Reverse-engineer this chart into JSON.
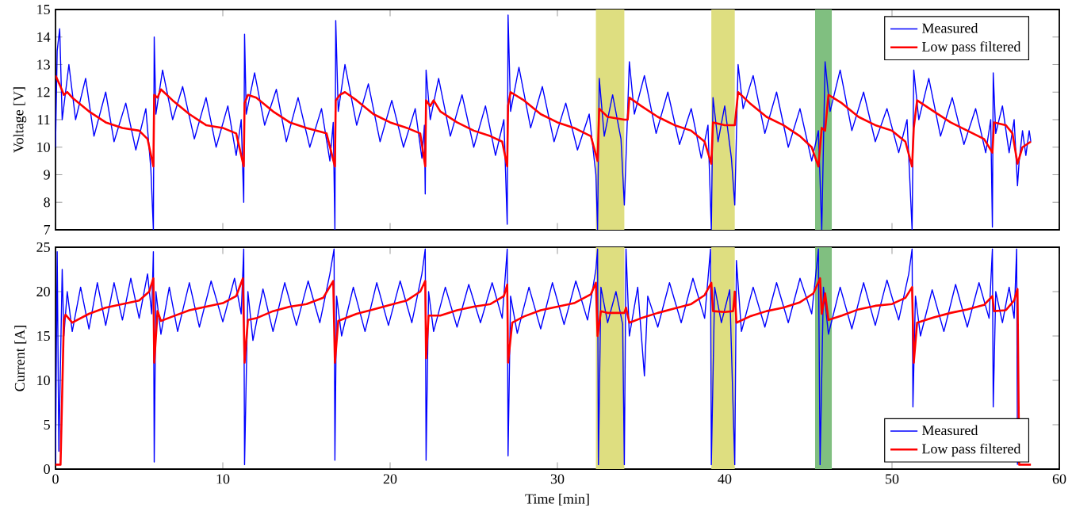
{
  "chart_data": [
    {
      "type": "line",
      "ylabel": "Voltage [V]",
      "xlim": [
        0,
        60
      ],
      "ylim": [
        7,
        15
      ],
      "xticks": [
        0,
        10,
        20,
        30,
        40,
        50,
        60
      ],
      "yticks": [
        7,
        8,
        9,
        10,
        11,
        12,
        13,
        14,
        15
      ],
      "tick_labels": "y",
      "legend": "top right",
      "bands": [
        {
          "axis": "x",
          "from": 32.3,
          "to": 34.0,
          "color": "#dede80"
        },
        {
          "axis": "x",
          "from": 39.2,
          "to": 40.6,
          "color": "#dede80"
        },
        {
          "axis": "x",
          "from": 45.4,
          "to": 46.4,
          "color": "#80bf80"
        }
      ],
      "series": [
        {
          "name": "Measured",
          "color": "#0000ff",
          "x": [
            0,
            0.1,
            0.25,
            0.4,
            0.8,
            1.2,
            1.8,
            2.3,
            3,
            3.5,
            4.2,
            4.8,
            5.4,
            5.7,
            5.85,
            5.9,
            6.0,
            6.4,
            7.0,
            7.6,
            8.3,
            9.0,
            9.6,
            10.3,
            10.8,
            11.1,
            11.25,
            11.3,
            11.4,
            11.9,
            12.5,
            13.2,
            13.8,
            14.5,
            15.2,
            15.9,
            16.4,
            16.6,
            16.7,
            16.75,
            16.9,
            17.3,
            18.0,
            18.7,
            19.4,
            20.1,
            20.8,
            21.5,
            21.9,
            22.05,
            22.1,
            22.15,
            22.4,
            22.9,
            23.6,
            24.3,
            25.0,
            25.7,
            26.3,
            26.8,
            27.0,
            27.05,
            27.2,
            27.7,
            28.4,
            29.1,
            29.8,
            30.5,
            31.2,
            31.9,
            32.3,
            32.4,
            32.5,
            32.8,
            33.3,
            33.8,
            34.0,
            34.3,
            34.6,
            35.2,
            35.9,
            36.6,
            37.3,
            38.0,
            38.6,
            39.0,
            39.2,
            39.3,
            39.6,
            40.0,
            40.4,
            40.6,
            40.8,
            41.1,
            41.7,
            42.4,
            43.1,
            43.8,
            44.5,
            45.2,
            45.6,
            45.8,
            46.0,
            46.3,
            46.9,
            47.6,
            48.3,
            49.0,
            49.7,
            50.4,
            50.9,
            51.2,
            51.3,
            51.6,
            52.2,
            52.9,
            53.6,
            54.3,
            55.0,
            55.6,
            55.9,
            56.0,
            56.05,
            56.2,
            56.6,
            57.0,
            57.3,
            57.5,
            57.6,
            57.8,
            58.0,
            58.2,
            58.3
          ],
          "values": [
            10.0,
            13.5,
            14.3,
            11.0,
            13.0,
            11.0,
            12.5,
            10.4,
            12.0,
            10.2,
            11.6,
            9.9,
            11.4,
            9.2,
            7.0,
            14.0,
            11.2,
            12.8,
            11.0,
            12.2,
            10.3,
            11.8,
            10.0,
            11.5,
            9.7,
            11.0,
            8.0,
            14.1,
            11.2,
            12.7,
            10.8,
            12.1,
            10.2,
            11.8,
            10.0,
            11.4,
            9.5,
            10.9,
            7.0,
            14.6,
            11.3,
            13.0,
            10.8,
            12.3,
            10.2,
            11.7,
            10.0,
            11.4,
            9.6,
            10.8,
            8.3,
            12.8,
            11.0,
            12.5,
            10.4,
            11.9,
            10.0,
            11.5,
            9.7,
            11.0,
            7.2,
            14.8,
            11.3,
            12.9,
            10.7,
            12.2,
            10.2,
            11.6,
            9.9,
            11.2,
            9.0,
            7.0,
            12.5,
            10.4,
            11.9,
            10.3,
            7.9,
            13.1,
            11.2,
            12.6,
            10.5,
            12.0,
            10.1,
            11.4,
            9.6,
            10.8,
            7.0,
            11.8,
            10.2,
            11.5,
            9.6,
            7.9,
            13.0,
            11.4,
            12.6,
            10.5,
            12.0,
            10.0,
            11.4,
            9.5,
            10.6,
            7.0,
            13.1,
            11.3,
            12.8,
            10.6,
            12.0,
            10.2,
            11.4,
            9.8,
            11.0,
            7.0,
            12.8,
            11.0,
            12.5,
            10.4,
            11.8,
            10.1,
            11.4,
            9.8,
            11.0,
            7.1,
            12.7,
            10.5,
            11.5,
            9.8,
            11.0,
            8.6,
            9.5,
            10.6,
            9.7,
            10.6,
            10.2
          ]
        },
        {
          "name": "Low pass filtered",
          "color": "#ff0000",
          "x": [
            0,
            0.3,
            0.5,
            0.7,
            1,
            2,
            3,
            4,
            5,
            5.5,
            5.85,
            5.9,
            6.1,
            6.3,
            7,
            8,
            9,
            10,
            10.8,
            11.25,
            11.3,
            11.5,
            12,
            13,
            14,
            15,
            16.2,
            16.7,
            16.75,
            17,
            17.3,
            18,
            19,
            20,
            21,
            21.8,
            22.1,
            22.15,
            22.4,
            22.6,
            23,
            24,
            25,
            26,
            26.7,
            27.0,
            27.05,
            27.2,
            28,
            29,
            30,
            31,
            32,
            32.4,
            32.5,
            33,
            34,
            34.2,
            34.3,
            35,
            36,
            37,
            38,
            38.8,
            39.2,
            39.3,
            40,
            40.6,
            40.8,
            41.5,
            42.5,
            43.5,
            44.5,
            45.2,
            45.6,
            45.8,
            46.0,
            46.2,
            47,
            48,
            49,
            50,
            50.8,
            51.2,
            51.3,
            51.5,
            52.5,
            53.5,
            54.5,
            55.5,
            56.0,
            56.1,
            56.8,
            57.2,
            57.5,
            57.8,
            58.3
          ],
          "values": [
            12.6,
            12.2,
            11.9,
            12.0,
            11.8,
            11.3,
            10.9,
            10.7,
            10.6,
            10.3,
            9.3,
            11.9,
            11.8,
            12.1,
            11.7,
            11.2,
            10.8,
            10.7,
            10.5,
            9.3,
            11.6,
            11.9,
            11.8,
            11.3,
            10.9,
            10.7,
            10.5,
            9.3,
            11.7,
            11.9,
            12.0,
            11.7,
            11.2,
            10.9,
            10.7,
            10.5,
            9.3,
            11.7,
            11.5,
            11.7,
            11.3,
            10.9,
            10.6,
            10.4,
            10.2,
            9.3,
            11.5,
            12.0,
            11.7,
            11.2,
            10.9,
            10.7,
            10.4,
            9.5,
            11.4,
            11.1,
            11.0,
            11.0,
            11.8,
            11.5,
            11.1,
            10.8,
            10.6,
            10.2,
            9.4,
            10.9,
            10.8,
            10.8,
            12.0,
            11.6,
            11.1,
            10.8,
            10.4,
            10.0,
            9.3,
            10.7,
            10.6,
            11.9,
            11.6,
            11.1,
            10.8,
            10.6,
            10.2,
            9.3,
            10.7,
            11.7,
            11.3,
            10.9,
            10.6,
            10.3,
            9.8,
            10.9,
            10.8,
            10.5,
            9.4,
            10.0,
            10.2
          ]
        }
      ]
    },
    {
      "type": "line",
      "xlabel": "Time [min]",
      "ylabel": "Current [A]",
      "xlim": [
        0,
        60
      ],
      "ylim": [
        0,
        25
      ],
      "xticks": [
        0,
        10,
        20,
        30,
        40,
        50,
        60
      ],
      "yticks": [
        0,
        5,
        10,
        15,
        20,
        25
      ],
      "legend": "bottom right",
      "bands": [
        {
          "axis": "x",
          "from": 32.3,
          "to": 34.0,
          "color": "#dede80"
        },
        {
          "axis": "x",
          "from": 39.2,
          "to": 40.6,
          "color": "#dede80"
        },
        {
          "axis": "x",
          "from": 45.4,
          "to": 46.4,
          "color": "#80bf80"
        }
      ],
      "series": [
        {
          "name": "Measured",
          "color": "#0000ff",
          "x": [
            0,
            0.1,
            0.2,
            0.4,
            0.5,
            0.7,
            1,
            1.5,
            2,
            2.5,
            3,
            3.5,
            4,
            4.5,
            5,
            5.5,
            5.75,
            5.85,
            5.9,
            6.0,
            6.3,
            6.8,
            7.3,
            8,
            8.6,
            9.3,
            10,
            10.7,
            11.1,
            11.25,
            11.3,
            11.5,
            11.8,
            12.4,
            13,
            13.7,
            14.4,
            15.1,
            15.8,
            16.4,
            16.65,
            16.7,
            16.8,
            17.1,
            17.8,
            18.5,
            19.2,
            19.9,
            20.6,
            21.3,
            21.9,
            22.1,
            22.15,
            22.3,
            22.6,
            23.3,
            24,
            24.7,
            25.4,
            26.1,
            26.7,
            27,
            27.05,
            27.2,
            27.6,
            28.3,
            29,
            29.7,
            30.4,
            31.1,
            31.8,
            32.3,
            32.4,
            32.45,
            32.6,
            33,
            33.5,
            33.9,
            34.0,
            34.1,
            34.3,
            34.8,
            35.2,
            35.4,
            36,
            36.7,
            37.4,
            38.1,
            38.8,
            39.15,
            39.2,
            39.4,
            39.8,
            40.3,
            40.6,
            40.7,
            41,
            41.7,
            42.4,
            43.1,
            43.8,
            44.5,
            45.2,
            45.6,
            45.7,
            45.9,
            46.2,
            46.9,
            47.6,
            48.3,
            49,
            49.7,
            50.4,
            51,
            51.2,
            51.25,
            51.4,
            51.7,
            52.4,
            53.1,
            53.8,
            54.5,
            55.2,
            55.8,
            56.0,
            56.05,
            56.2,
            56.6,
            57.0,
            57.3,
            57.45,
            57.5
          ],
          "values": [
            0.5,
            24.5,
            2,
            22.5,
            15,
            20,
            15.5,
            20.5,
            15.8,
            21,
            16.2,
            21,
            16.8,
            21.5,
            17,
            22,
            17.5,
            24.5,
            0.8,
            20,
            15.2,
            20.5,
            15.5,
            21,
            16,
            21.2,
            16.6,
            21.5,
            17.5,
            24.8,
            0.5,
            20,
            14.5,
            20.3,
            15.5,
            21,
            16.2,
            21.2,
            16.5,
            22,
            24.8,
            1.0,
            19.5,
            15,
            20.5,
            15.5,
            21,
            16.2,
            21.2,
            16.5,
            22,
            24.8,
            1.0,
            20,
            15.5,
            20.5,
            16,
            20.8,
            16.5,
            21,
            17,
            24.8,
            1.5,
            19.5,
            15.3,
            20.5,
            15.8,
            21,
            16.3,
            21.2,
            16.8,
            22.5,
            24.8,
            0.5,
            20.5,
            16.5,
            20,
            16.3,
            0.5,
            24.8,
            15,
            20.5,
            10.5,
            19.5,
            16,
            21,
            16.5,
            21.5,
            17,
            24.8,
            0.5,
            20.5,
            16.5,
            20.2,
            0.5,
            23.5,
            15.5,
            20.5,
            16,
            21,
            16.5,
            21.5,
            17.5,
            24.8,
            0.5,
            20.5,
            15.2,
            20.5,
            15.8,
            21,
            16.2,
            21.3,
            16.8,
            22,
            24.8,
            7,
            19.5,
            15,
            20.2,
            15.5,
            20.8,
            16,
            21,
            17,
            24.8,
            7,
            20,
            16.5,
            20.5,
            17,
            24.8,
            0.5
          ]
        },
        {
          "name": "Low pass filtered",
          "color": "#ff0000",
          "x": [
            0,
            0.3,
            0.5,
            0.6,
            1,
            2,
            3,
            4,
            5,
            5.6,
            5.85,
            5.9,
            6.1,
            6.3,
            7,
            8,
            9,
            10,
            10.8,
            11.2,
            11.3,
            11.5,
            12,
            13,
            14,
            15,
            16,
            16.6,
            16.7,
            16.9,
            18,
            19,
            20,
            21,
            21.8,
            22.1,
            22.15,
            22.3,
            23,
            24,
            25,
            26,
            26.8,
            27.0,
            27.05,
            27.3,
            28,
            29,
            30,
            31,
            32,
            32.3,
            32.4,
            32.6,
            33,
            34,
            34.1,
            34.3,
            35,
            36,
            37,
            38,
            38.8,
            39.2,
            39.3,
            40,
            40.5,
            40.6,
            40.7,
            41.5,
            42.5,
            43.5,
            44.5,
            45.3,
            45.7,
            45.8,
            46.0,
            46.2,
            47,
            48,
            49,
            50,
            50.8,
            51.2,
            51.3,
            51.5,
            52.5,
            53.5,
            54.5,
            55.5,
            56.0,
            56.1,
            56.8,
            57.3,
            57.5,
            57.6,
            58.3
          ],
          "values": [
            0.5,
            0.5,
            16.8,
            17.4,
            16.5,
            17.5,
            18.2,
            18.6,
            19.0,
            20,
            21.5,
            12.0,
            17.8,
            16.7,
            17.2,
            17.9,
            18.3,
            18.7,
            19.5,
            21.5,
            12.0,
            16.8,
            17,
            17.8,
            18.3,
            18.6,
            19.3,
            21.2,
            12,
            16.7,
            17.5,
            18,
            18.5,
            19.0,
            20,
            21.2,
            12.5,
            17.3,
            17.3,
            17.9,
            18.3,
            18.6,
            19.5,
            20.8,
            12.0,
            16.5,
            17.2,
            17.9,
            18.3,
            18.7,
            19.7,
            21,
            15,
            17.8,
            17.6,
            17.6,
            18.2,
            16.5,
            17,
            17.6,
            18.1,
            18.6,
            19.6,
            21.0,
            17.8,
            17.7,
            17.8,
            20.0,
            16.5,
            17.2,
            17.8,
            18.2,
            18.8,
            19.8,
            21.5,
            17.5,
            19.8,
            16.8,
            17.3,
            18,
            18.4,
            18.6,
            19.3,
            20.5,
            12.0,
            16.5,
            17.1,
            17.6,
            18,
            18.5,
            19.5,
            17.8,
            17.9,
            19.0,
            20.3,
            0.5,
            0.5
          ]
        }
      ]
    }
  ]
}
